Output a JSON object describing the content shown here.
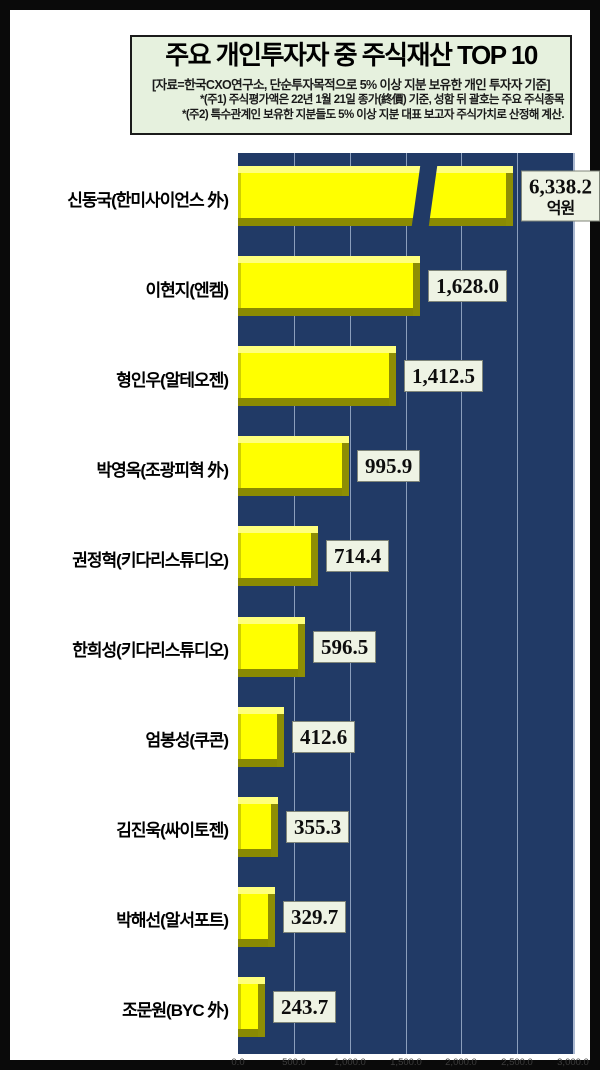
{
  "header": {
    "title": "주요 개인투자자 중 주식재산 TOP 10",
    "source_line": "[자료=한국CXO연구소, 단순투자목적으로 5% 이상 지분 보유한 개인 투자자 기준]",
    "note1": "*(주1) 주식평가액은 22년 1월 21일 종가(終價) 기준, 성함 뒤 괄호는 주요 주식종목",
    "note2": "*(주2) 특수관계인 보유한 지분들도 5% 이상 지분 대표 보고자 주식가치로 산정해 계산."
  },
  "chart_data": {
    "type": "bar",
    "orientation": "horizontal",
    "title": "주요 개인투자자 중 주식재산 TOP 10",
    "unit": "억원",
    "categories": [
      "신동국(한미사이언스 外)",
      "이현지(엔켐)",
      "형인우(알테오젠)",
      "박영옥(조광피혁 外)",
      "권정혁(키다리스튜디오)",
      "한희성(키다리스튜디오)",
      "엄봉성(쿠콘)",
      "김진욱(싸이토젠)",
      "박해선(알서포트)",
      "조문원(BYC 外)"
    ],
    "values": [
      6338.2,
      1628.0,
      1412.5,
      995.9,
      714.4,
      596.5,
      412.6,
      355.3,
      329.7,
      243.7
    ],
    "value_labels": [
      "6,338.2",
      "1,628.0",
      "1,412.5",
      "995.9",
      "714.4",
      "596.5",
      "412.6",
      "355.3",
      "329.7",
      "243.7"
    ],
    "first_value_unit_suffix": "억원",
    "xlabel": "",
    "ylabel": "",
    "xlim": [
      0,
      3000
    ],
    "x_ticks": [
      "0.0",
      "500.0",
      "1,000.0",
      "1,500.0",
      "2,000.0",
      "2,500.0",
      "3,000.0"
    ],
    "grid": true,
    "legend": "none",
    "axis_break": {
      "bar_index": 0,
      "reason": "value 6338.2 exceeds axis maximum 3000"
    },
    "colors": {
      "plot_background": "#213a66",
      "bar_fill": "#ffff00",
      "bar_highlight": "#ffff7d",
      "bar_shadow": "#8a8a02",
      "gridline": "#afc0da",
      "value_box_background": "#eef3e4",
      "header_background": "#e6f1de",
      "frame": "#0a0a0a"
    }
  }
}
